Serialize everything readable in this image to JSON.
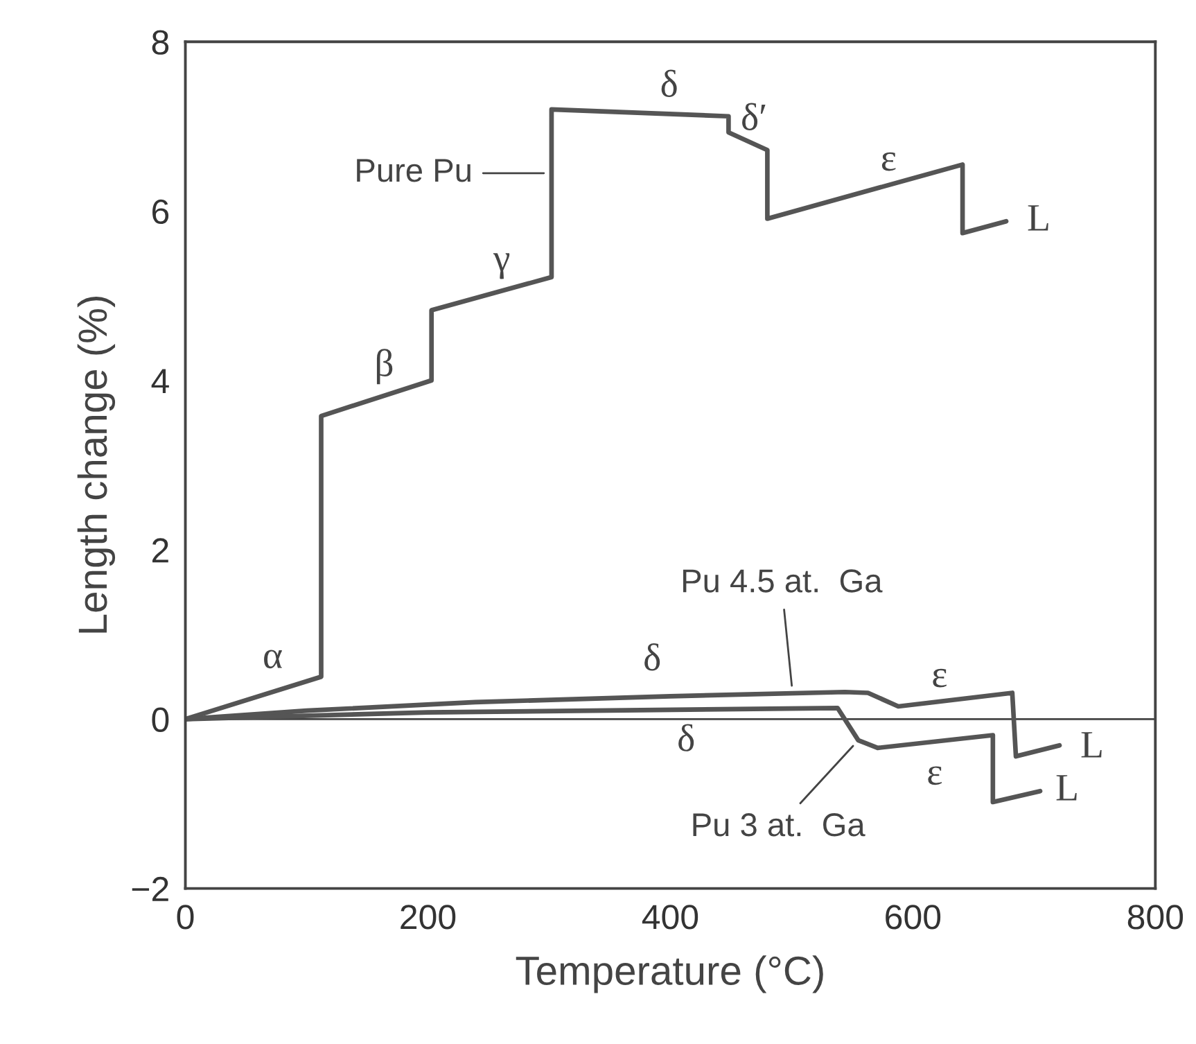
{
  "chart_data": {
    "type": "line",
    "xlabel": "Temperature (°C)",
    "ylabel": "Length change (%)",
    "xlim": [
      0,
      800
    ],
    "ylim": [
      -2,
      8
    ],
    "xticks": [
      0,
      200,
      400,
      600,
      800
    ],
    "yticks": [
      {
        "value": -2,
        "label": "−2"
      },
      0,
      2,
      4,
      6,
      8
    ],
    "grid": false,
    "legend": false,
    "marker": "none",
    "line_style": "solid",
    "ref_lines": [
      {
        "axis": "y",
        "value": 0,
        "label": null,
        "color": "#444444"
      }
    ],
    "series": [
      {
        "name": "Pure Pu",
        "color": "#555555",
        "x": [
          0,
          112,
          112,
          203,
          203,
          302,
          302,
          448,
          448,
          480,
          480,
          641,
          641,
          677
        ],
        "values": [
          0,
          0.5,
          3.58,
          4.0,
          4.83,
          5.22,
          7.2,
          7.12,
          6.93,
          6.72,
          5.91,
          6.55,
          5.74,
          5.88
        ]
      },
      {
        "name": "Pu 4.5 at.  Ga",
        "color": "#555555",
        "x": [
          0,
          100,
          239,
          400,
          544,
          563,
          588,
          682,
          685,
          721
        ],
        "values": [
          0,
          0.1,
          0.2,
          0.27,
          0.32,
          0.31,
          0.15,
          0.31,
          -0.44,
          -0.31
        ]
      },
      {
        "name": "Pu 3 at.  Ga",
        "color": "#555555",
        "x": [
          0,
          200,
          538,
          555,
          571,
          666,
          666,
          705
        ],
        "values": [
          0,
          0.08,
          0.13,
          -0.25,
          -0.34,
          -0.19,
          -0.98,
          -0.85
        ]
      }
    ],
    "annotations": [
      {
        "text": "α",
        "x": 72,
        "y": 0.32
      },
      {
        "text": "β",
        "x": 164,
        "y": 3.82
      },
      {
        "text": "γ",
        "x": 261,
        "y": 5.06
      },
      {
        "text": "δ",
        "x": 399,
        "y": 7.15
      },
      {
        "text": "δ′",
        "x": 469,
        "y": 6.79
      },
      {
        "text": "ε",
        "x": 580,
        "y": 6.31
      },
      {
        "text": "L",
        "x": 677,
        "y": 5.88
      },
      {
        "text": "δ",
        "x": 385,
        "y": 0.26
      },
      {
        "text": "ε",
        "x": 622,
        "y": 0.21
      },
      {
        "text": "L",
        "x": 721,
        "y": -0.31
      },
      {
        "text": "δ",
        "x": 413,
        "y": 0.11
      },
      {
        "text": "ε",
        "x": 618,
        "y": -0.27
      },
      {
        "text": "L",
        "x": 705,
        "y": -0.85
      }
    ]
  }
}
